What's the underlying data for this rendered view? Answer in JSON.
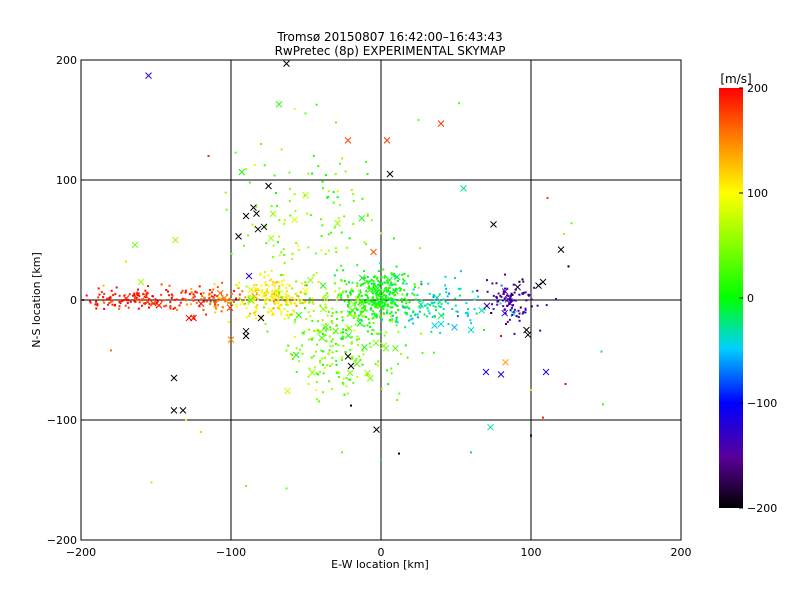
{
  "chart_data": {
    "type": "scatter",
    "title": "Tromsø 20150807 16:42:00–16:43:43",
    "subtitle": "RwPretec (8p) EXPERIMENTAL SKYMAP",
    "xlabel": "E-W location [km]",
    "ylabel": "N-S location [km]",
    "xlim": [
      -200,
      200
    ],
    "ylim": [
      -200,
      200
    ],
    "xticks": [
      -200,
      -100,
      0,
      100,
      200
    ],
    "yticks": [
      -200,
      -100,
      0,
      100,
      200
    ],
    "grid": true,
    "colorbar": {
      "label": "[m/s]",
      "min": -200,
      "max": 200,
      "ticks": [
        200,
        100,
        0,
        -100,
        -200
      ],
      "colormap": "black-purple-blue-cyan-green-yellow-red"
    },
    "clusters": [
      {
        "name": "west-red",
        "cx": -160,
        "cy": 1,
        "sx": 24,
        "sy": 4,
        "vmean": 190,
        "vsd": 12,
        "n": 150
      },
      {
        "name": "west-orange",
        "cx": -112,
        "cy": 1,
        "sx": 12,
        "sy": 5,
        "vmean": 160,
        "vsd": 18,
        "n": 80
      },
      {
        "name": "yellow-patch",
        "cx": -72,
        "cy": 2,
        "sx": 13,
        "sy": 8,
        "vmean": 105,
        "vsd": 18,
        "n": 170
      },
      {
        "name": "central-green",
        "cx": -2,
        "cy": 2,
        "sx": 11,
        "sy": 11,
        "vmean": 5,
        "vsd": 12,
        "n": 300
      },
      {
        "name": "south-green",
        "cx": -30,
        "cy": -35,
        "sx": 22,
        "sy": 22,
        "vmean": 40,
        "vsd": 22,
        "n": 230
      },
      {
        "name": "north-green",
        "cx": -45,
        "cy": 60,
        "sx": 25,
        "sy": 40,
        "vmean": 45,
        "vsd": 25,
        "n": 130
      },
      {
        "name": "east-cyan",
        "cx": 35,
        "cy": -5,
        "sx": 18,
        "sy": 10,
        "vmean": -35,
        "vsd": 15,
        "n": 110
      },
      {
        "name": "east-purple",
        "cx": 88,
        "cy": 0,
        "sx": 8,
        "sy": 10,
        "vmean": -150,
        "vsd": 25,
        "n": 90
      }
    ],
    "cross_markers": [
      {
        "x": -155,
        "y": 187,
        "v": -120
      },
      {
        "x": -63,
        "y": 197,
        "v": -200
      },
      {
        "x": -68,
        "y": 163,
        "v": 20
      },
      {
        "x": -22,
        "y": 133,
        "v": 175
      },
      {
        "x": 4,
        "y": 133,
        "v": 180
      },
      {
        "x": 40,
        "y": 147,
        "v": 180
      },
      {
        "x": 6,
        "y": 105,
        "v": -200
      },
      {
        "x": 75,
        "y": 63,
        "v": -200
      },
      {
        "x": 120,
        "y": 42,
        "v": -200
      },
      {
        "x": -95,
        "y": 53,
        "v": -200
      },
      {
        "x": -90,
        "y": 70,
        "v": -200
      },
      {
        "x": -85,
        "y": 77,
        "v": -200
      },
      {
        "x": -83,
        "y": 72,
        "v": -200
      },
      {
        "x": -75,
        "y": 95,
        "v": -200
      },
      {
        "x": -82,
        "y": 59,
        "v": -200
      },
      {
        "x": -78,
        "y": 61,
        "v": -200
      },
      {
        "x": -164,
        "y": 46,
        "v": 40
      },
      {
        "x": -137,
        "y": 50,
        "v": 60
      },
      {
        "x": -125,
        "y": -15,
        "v": 200
      },
      {
        "x": -120,
        "y": -3,
        "v": 200
      },
      {
        "x": -100,
        "y": -33,
        "v": 150
      },
      {
        "x": -90,
        "y": -26,
        "v": -200
      },
      {
        "x": -80,
        "y": -15,
        "v": -200
      },
      {
        "x": -90,
        "y": -30,
        "v": -200
      },
      {
        "x": -138,
        "y": -65,
        "v": -200
      },
      {
        "x": -138,
        "y": -92,
        "v": -200
      },
      {
        "x": -132,
        "y": -92,
        "v": -200
      },
      {
        "x": 108,
        "y": 15,
        "v": -200
      },
      {
        "x": 105,
        "y": 12,
        "v": -200
      },
      {
        "x": 97,
        "y": -25,
        "v": -200
      },
      {
        "x": 98,
        "y": -29,
        "v": -200
      },
      {
        "x": 80,
        "y": -62,
        "v": -120
      },
      {
        "x": 70,
        "y": -60,
        "v": -120
      },
      {
        "x": 110,
        "y": -60,
        "v": -120
      },
      {
        "x": 83,
        "y": -52,
        "v": 140
      },
      {
        "x": 73,
        "y": -106,
        "v": -30
      },
      {
        "x": -3,
        "y": -108,
        "v": -200
      },
      {
        "x": -22,
        "y": -47,
        "v": -200
      },
      {
        "x": -5,
        "y": 40,
        "v": 170
      },
      {
        "x": 55,
        "y": 93,
        "v": -30
      },
      {
        "x": -20,
        "y": -55,
        "v": -200
      },
      {
        "x": 60,
        "y": -25,
        "v": -40
      },
      {
        "x": 40,
        "y": -20,
        "v": -40
      },
      {
        "x": -160,
        "y": 15,
        "v": 60
      },
      {
        "x": -128,
        "y": -15,
        "v": 200
      },
      {
        "x": -88,
        "y": 20,
        "v": -120
      }
    ],
    "scatter_dots": [
      {
        "x": 52,
        "y": 164,
        "v": 30
      },
      {
        "x": 111,
        "y": 85,
        "v": 180
      },
      {
        "x": 122,
        "y": 55,
        "v": 60
      },
      {
        "x": 127,
        "y": 64,
        "v": 40
      },
      {
        "x": 125,
        "y": 28,
        "v": -200
      },
      {
        "x": 148,
        "y": -87,
        "v": 20
      },
      {
        "x": 147,
        "y": -43,
        "v": -40
      },
      {
        "x": 123,
        "y": -70,
        "v": 200
      },
      {
        "x": 108,
        "y": -98,
        "v": 190
      },
      {
        "x": 60,
        "y": -127,
        "v": -20
      },
      {
        "x": -63,
        "y": -157,
        "v": 40
      },
      {
        "x": -90,
        "y": -155,
        "v": 40
      },
      {
        "x": -153,
        "y": -152,
        "v": 60
      },
      {
        "x": -120,
        "y": -110,
        "v": 120
      },
      {
        "x": -130,
        "y": -100,
        "v": 100
      },
      {
        "x": -180,
        "y": -42,
        "v": 160
      },
      {
        "x": -185,
        "y": 12,
        "v": 130
      },
      {
        "x": -170,
        "y": 32,
        "v": 120
      },
      {
        "x": 0,
        "y": -133,
        "v": -20
      },
      {
        "x": -26,
        "y": -127,
        "v": 40
      },
      {
        "x": 12,
        "y": -128,
        "v": -200
      },
      {
        "x": -30,
        "y": 148,
        "v": 40
      },
      {
        "x": -10,
        "y": 115,
        "v": 30
      },
      {
        "x": 80,
        "y": -30,
        "v": 200
      },
      {
        "x": 100,
        "y": -113,
        "v": -200
      },
      {
        "x": 25,
        "y": 150,
        "v": 40
      },
      {
        "x": -80,
        "y": 130,
        "v": 40
      },
      {
        "x": -115,
        "y": 120,
        "v": 190
      },
      {
        "x": 100,
        "y": -75,
        "v": 70
      },
      {
        "x": -20,
        "y": -88,
        "v": -200
      }
    ]
  }
}
